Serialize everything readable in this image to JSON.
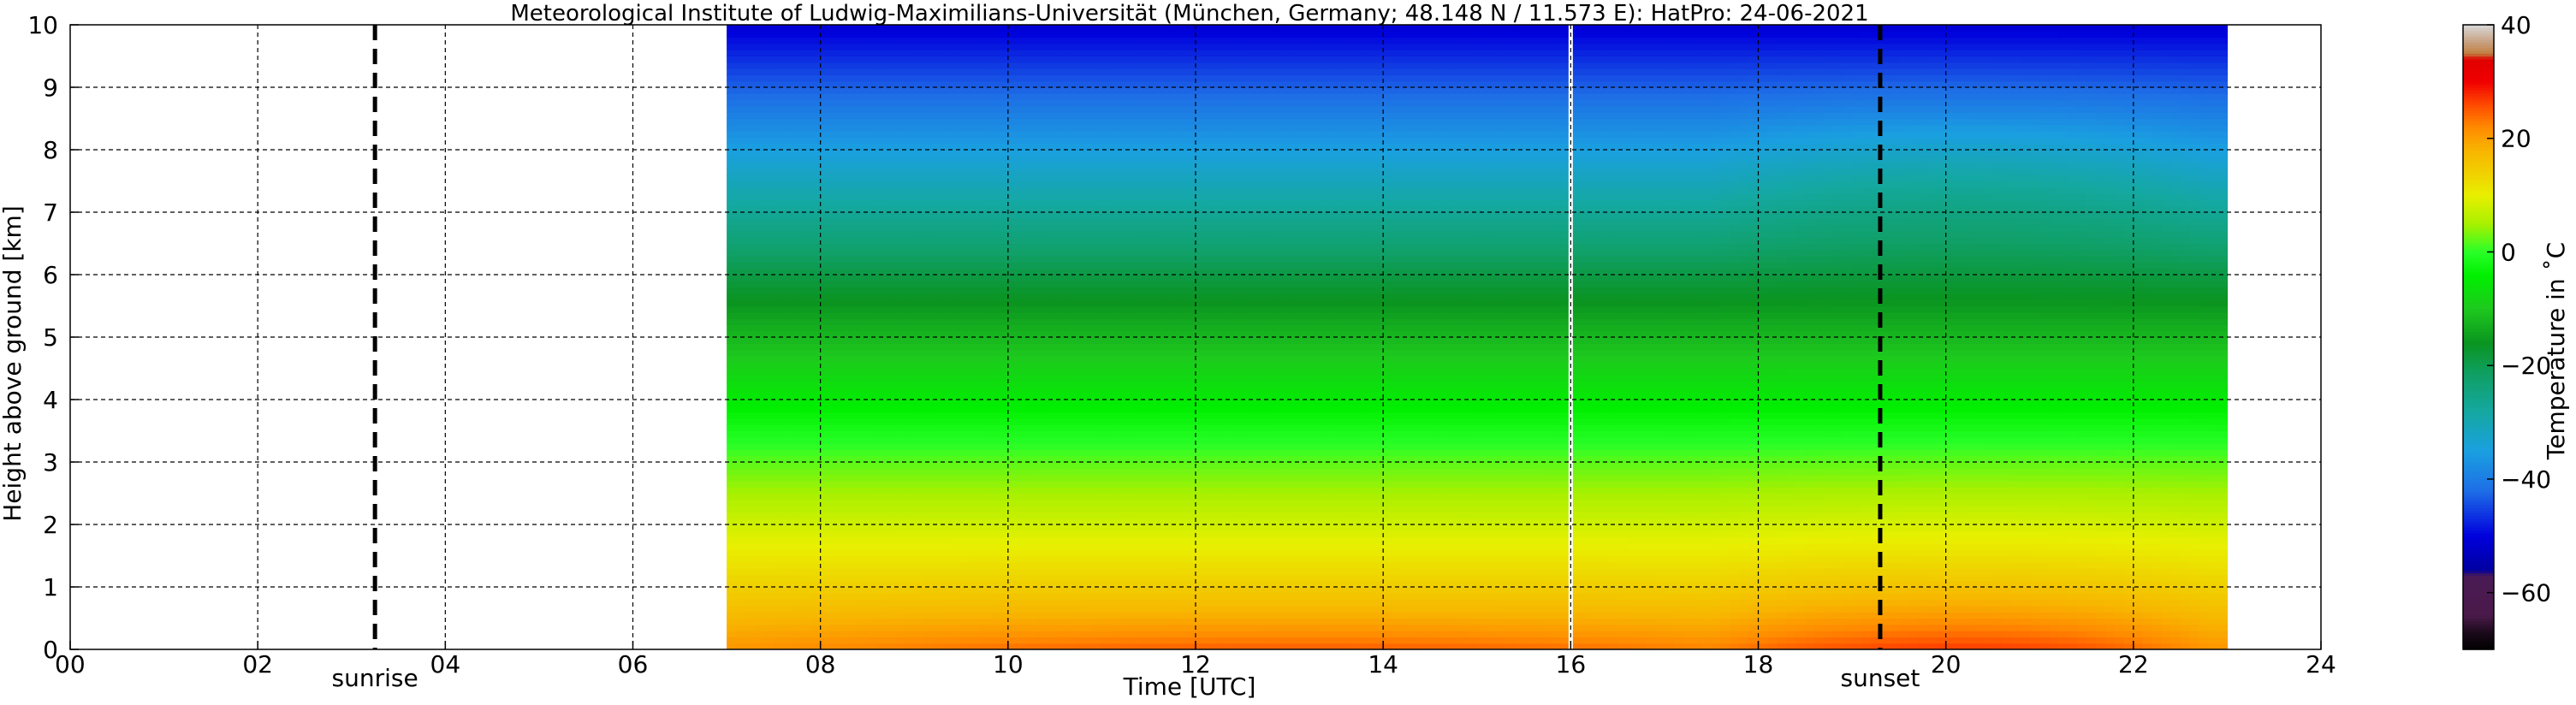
{
  "chart_data": {
    "type": "heatmap",
    "title": "Meteorological Institute of Ludwig-Maximilians-Universität (München, Germany; 48.148 N / 11.573 E):    HatPro: 24-06-2021",
    "xlabel": "Time [UTC]",
    "ylabel": "Height above ground [km]",
    "colorbar_label": "Temperature in ˚C",
    "xlim": [
      0,
      24
    ],
    "ylim": [
      0,
      10
    ],
    "x_ticks": [
      "00",
      "02",
      "04",
      "06",
      "08",
      "10",
      "12",
      "14",
      "16",
      "18",
      "20",
      "22",
      "24"
    ],
    "y_ticks": [
      "0",
      "1",
      "2",
      "3",
      "4",
      "5",
      "6",
      "7",
      "8",
      "9",
      "10"
    ],
    "colorbar_ticks": [
      "40",
      "20",
      "0",
      "−20",
      "−40",
      "−60"
    ],
    "colorbar_range": [
      -70,
      40
    ],
    "grid": true,
    "data_time_range": [
      7.0,
      23.0
    ],
    "data_gap_at": 16.0,
    "annotations": [
      {
        "label": "sunrise",
        "x": 3.25
      },
      {
        "label": "sunset",
        "x": 19.3
      }
    ],
    "temperature_profile_approx": [
      {
        "height_km": 0.0,
        "temp_c": 21
      },
      {
        "height_km": 1.0,
        "temp_c": 14
      },
      {
        "height_km": 2.0,
        "temp_c": 8
      },
      {
        "height_km": 3.0,
        "temp_c": 2
      },
      {
        "height_km": 4.0,
        "temp_c": -5
      },
      {
        "height_km": 5.0,
        "temp_c": -12
      },
      {
        "height_km": 6.0,
        "temp_c": -19
      },
      {
        "height_km": 7.0,
        "temp_c": -27
      },
      {
        "height_km": 8.0,
        "temp_c": -35
      },
      {
        "height_km": 9.0,
        "temp_c": -43
      },
      {
        "height_km": 10.0,
        "temp_c": -51
      }
    ],
    "evening_warm_period": {
      "time_range": [
        17.5,
        22.8
      ],
      "near_surface_temp_c": 27
    }
  }
}
